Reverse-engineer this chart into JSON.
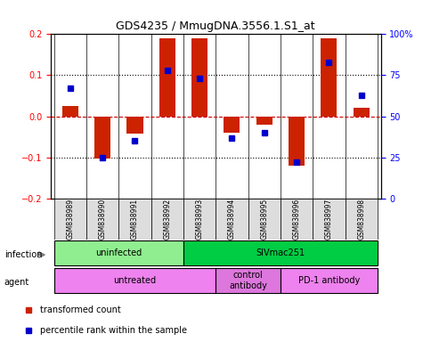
{
  "title": "GDS4235 / MmugDNA.3556.1.S1_at",
  "samples": [
    "GSM838989",
    "GSM838990",
    "GSM838991",
    "GSM838992",
    "GSM838993",
    "GSM838994",
    "GSM838995",
    "GSM838996",
    "GSM838997",
    "GSM838998"
  ],
  "red_values": [
    0.025,
    -0.103,
    -0.042,
    0.19,
    0.19,
    -0.04,
    -0.02,
    -0.12,
    0.19,
    0.02
  ],
  "blue_values_pct": [
    67,
    25,
    35,
    78,
    73,
    37,
    40,
    22,
    83,
    63
  ],
  "ylim_left": [
    -0.2,
    0.2
  ],
  "ylim_right": [
    0,
    100
  ],
  "yticks_left": [
    -0.2,
    -0.1,
    0,
    0.1,
    0.2
  ],
  "yticks_right": [
    0,
    25,
    50,
    75,
    100
  ],
  "infection_groups": [
    {
      "label": "uninfected",
      "start": 0,
      "end": 4,
      "color": "#90EE90"
    },
    {
      "label": "SIVmac251",
      "start": 4,
      "end": 10,
      "color": "#00CC44"
    }
  ],
  "agent_groups": [
    {
      "label": "untreated",
      "start": 0,
      "end": 5,
      "color": "#EE82EE"
    },
    {
      "label": "control\nantibody",
      "start": 5,
      "end": 7,
      "color": "#DD77DD"
    },
    {
      "label": "PD-1 antibody",
      "start": 7,
      "end": 10,
      "color": "#EE82EE"
    }
  ],
  "legend_red": "transformed count",
  "legend_blue": "percentile rank within the sample",
  "bar_width": 0.5,
  "red_color": "#CC2200",
  "blue_color": "#0000CC",
  "grid_color": "#000000",
  "zero_line_color": "#CC0000",
  "bg_color": "#FFFFFF"
}
